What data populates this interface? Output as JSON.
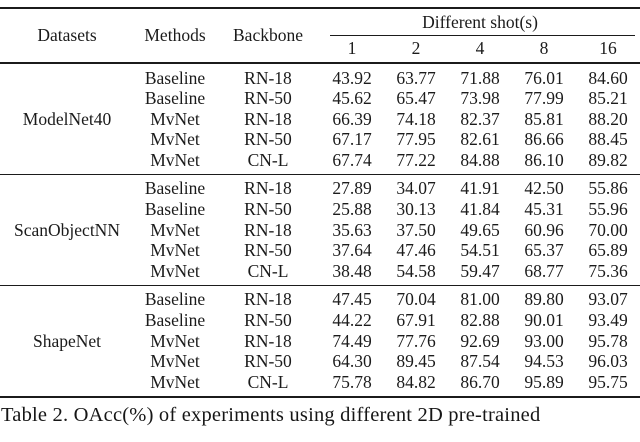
{
  "table": {
    "header": {
      "datasets": "Datasets",
      "methods": "Methods",
      "backbone": "Backbone",
      "shots_group": "Different shot(s)",
      "shots": [
        "1",
        "2",
        "4",
        "8",
        "16"
      ]
    },
    "groups": [
      {
        "dataset": "ModelNet40",
        "rows": [
          {
            "method": "Baseline",
            "backbone": "RN-18",
            "values": [
              "43.92",
              "63.77",
              "71.88",
              "76.01",
              "84.60"
            ]
          },
          {
            "method": "Baseline",
            "backbone": "RN-50",
            "values": [
              "45.62",
              "65.47",
              "73.98",
              "77.99",
              "85.21"
            ]
          },
          {
            "method": "MvNet",
            "backbone": "RN-18",
            "values": [
              "66.39",
              "74.18",
              "82.37",
              "85.81",
              "88.20"
            ]
          },
          {
            "method": "MvNet",
            "backbone": "RN-50",
            "values": [
              "67.17",
              "77.95",
              "82.61",
              "86.66",
              "88.45"
            ]
          },
          {
            "method": "MvNet",
            "backbone": "CN-L",
            "values": [
              "67.74",
              "77.22",
              "84.88",
              "86.10",
              "89.82"
            ]
          }
        ]
      },
      {
        "dataset": "ScanObjectNN",
        "rows": [
          {
            "method": "Baseline",
            "backbone": "RN-18",
            "values": [
              "27.89",
              "34.07",
              "41.91",
              "42.50",
              "55.86"
            ]
          },
          {
            "method": "Baseline",
            "backbone": "RN-50",
            "values": [
              "25.88",
              "30.13",
              "41.84",
              "45.31",
              "55.96"
            ]
          },
          {
            "method": "MvNet",
            "backbone": "RN-18",
            "values": [
              "35.63",
              "37.50",
              "49.65",
              "60.96",
              "70.00"
            ]
          },
          {
            "method": "MvNet",
            "backbone": "RN-50",
            "values": [
              "37.64",
              "47.46",
              "54.51",
              "65.37",
              "65.89"
            ]
          },
          {
            "method": "MvNet",
            "backbone": "CN-L",
            "values": [
              "38.48",
              "54.58",
              "59.47",
              "68.77",
              "75.36"
            ]
          }
        ]
      },
      {
        "dataset": "ShapeNet",
        "rows": [
          {
            "method": "Baseline",
            "backbone": "RN-18",
            "values": [
              "47.45",
              "70.04",
              "81.00",
              "89.80",
              "93.07"
            ]
          },
          {
            "method": "Baseline",
            "backbone": "RN-50",
            "values": [
              "44.22",
              "67.91",
              "82.88",
              "90.01",
              "93.49"
            ]
          },
          {
            "method": "MvNet",
            "backbone": "RN-18",
            "values": [
              "74.49",
              "77.76",
              "92.69",
              "93.00",
              "95.78"
            ]
          },
          {
            "method": "MvNet",
            "backbone": "RN-50",
            "values": [
              "64.30",
              "89.45",
              "87.54",
              "94.53",
              "96.03"
            ]
          },
          {
            "method": "MvNet",
            "backbone": "CN-L",
            "values": [
              "75.78",
              "84.82",
              "86.70",
              "95.89",
              "95.75"
            ]
          }
        ]
      }
    ]
  },
  "caption": {
    "text": "Table 2. OAcc(%) of experiments using different 2D pre-trained"
  },
  "colors": {
    "text": "#1b1b1b",
    "rule": "#1b1b1b",
    "background": "#ffffff"
  }
}
